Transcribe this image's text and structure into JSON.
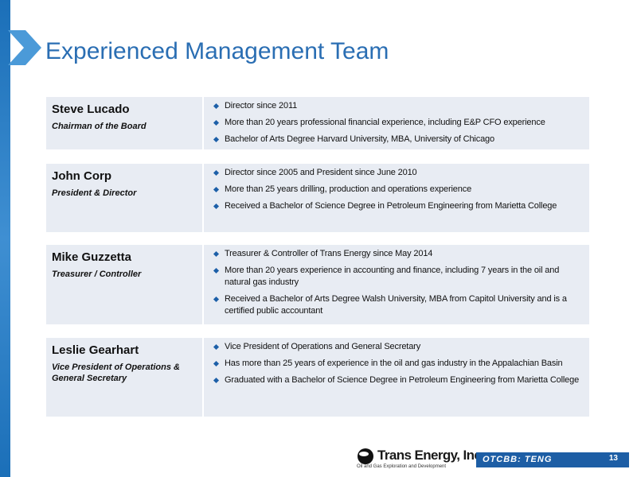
{
  "header": {
    "title": "Experienced Management Team"
  },
  "team": [
    {
      "name": "Steve Lucado",
      "role": "Chairman of the Board",
      "bullets": [
        "Director since 2011",
        "More than 20 years professional financial experience, including E&P CFO experience",
        "Bachelor of Arts Degree Harvard University, MBA, University of Chicago"
      ]
    },
    {
      "name": "John Corp",
      "role": "President & Director",
      "bullets": [
        "Director since 2005 and President since June 2010",
        "More than 25 years drilling, production and operations experience",
        "Received a Bachelor of Science Degree in Petroleum Engineering from Marietta College"
      ]
    },
    {
      "name": "Mike Guzzetta",
      "role": "Treasurer / Controller",
      "bullets": [
        "Treasurer & Controller of Trans Energy since May 2014",
        "More than 20 years experience in accounting and finance, including 7 years in the oil and natural gas industry",
        "Received a Bachelor of Arts Degree Walsh University, MBA from Capitol University and is a certified public accountant"
      ]
    },
    {
      "name": "Leslie Gearhart",
      "role": "Vice President of Operations & General Secretary",
      "bullets": [
        "Vice President of Operations and General Secretary",
        "Has more than 25 years of experience in the oil and gas industry in the Appalachian Basin",
        "Graduated with a Bachelor of Science Degree in Petroleum Engineering from Marietta College"
      ]
    }
  ],
  "footer": {
    "logo": "Trans Energy, Inc.",
    "tagline": "Oil and Gas Exploration and Development",
    "ticker": "OTCBB: TENG",
    "page": "13"
  }
}
